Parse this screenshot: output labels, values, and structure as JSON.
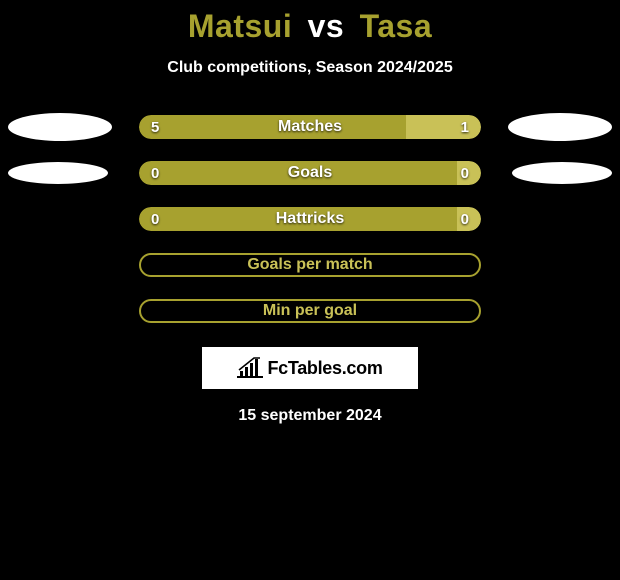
{
  "colors": {
    "accent": "#a7a12f",
    "accent2": "#c9c157",
    "white": "#ffffff",
    "black": "#000000",
    "title_p1": "#a7a12f",
    "title_p2": "#a7a12f"
  },
  "title": {
    "player1": "Matsui",
    "vs": "vs",
    "player2": "Tasa"
  },
  "subtitle": "Club competitions, Season 2024/2025",
  "stats": [
    {
      "type": "split",
      "label": "Matches",
      "left_value": "5",
      "right_value": "1",
      "left_pct": 78,
      "right_pct": 22,
      "left_color": "#a7a12f",
      "right_color": "#c9c157",
      "show_left_ball": true,
      "show_right_ball": true,
      "ball_size": "big"
    },
    {
      "type": "split",
      "label": "Goals",
      "left_value": "0",
      "right_value": "0",
      "left_pct": 93,
      "right_pct": 7,
      "left_color": "#a7a12f",
      "right_color": "#c9c157",
      "show_left_ball": true,
      "show_right_ball": true,
      "ball_size": "small"
    },
    {
      "type": "split",
      "label": "Hattricks",
      "left_value": "0",
      "right_value": "0",
      "left_pct": 93,
      "right_pct": 7,
      "left_color": "#a7a12f",
      "right_color": "#c9c157",
      "show_left_ball": false,
      "show_right_ball": false
    },
    {
      "type": "outline",
      "label": "Goals per match",
      "border_color": "#a7a12f",
      "text_color": "#c9c157"
    },
    {
      "type": "outline",
      "label": "Min per goal",
      "border_color": "#a7a12f",
      "text_color": "#c9c157"
    }
  ],
  "brand": {
    "text": "FcTables.com",
    "icon": "chart-icon"
  },
  "date": "15 september 2024"
}
